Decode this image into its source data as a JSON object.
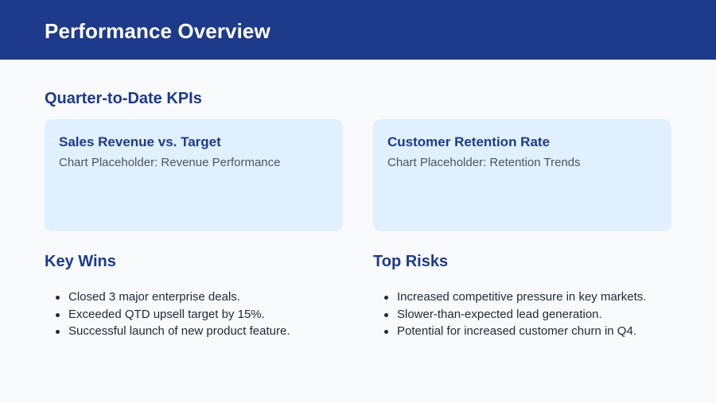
{
  "header": {
    "title": "Performance Overview",
    "background_color": "#1e3a8a"
  },
  "kpis": {
    "title": "Quarter-to-Date KPIs",
    "cards": [
      {
        "title": "Sales Revenue vs. Target",
        "subtitle": "Chart Placeholder: Revenue Performance"
      },
      {
        "title": "Customer Retention Rate",
        "subtitle": "Chart Placeholder: Retention Trends"
      }
    ],
    "card_color": "#e0f0fe"
  },
  "key_wins": {
    "title": "Key Wins",
    "items": [
      "Closed 3 major enterprise deals.",
      "Exceeded QTD upsell target by 15%.",
      "Successful launch of new product feature."
    ]
  },
  "top_risks": {
    "title": "Top Risks",
    "items": [
      "Increased competitive pressure in key markets.",
      "Slower-than-expected lead generation.",
      "Potential for increased customer churn in Q4."
    ]
  },
  "colors": {
    "accent": "#1e3a8a",
    "background": "#f8fafc",
    "body_text": "#1f2937",
    "muted_text": "#4b5563"
  }
}
